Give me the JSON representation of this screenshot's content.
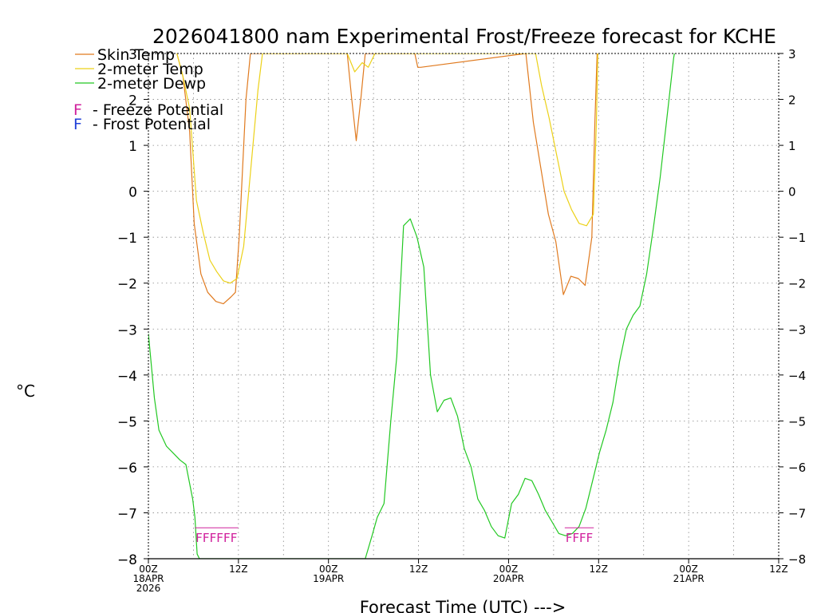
{
  "chart_data": {
    "type": "line",
    "title": "2026041800 nam Experimental Frost/Freeze forecast for KCHE",
    "xlabel": "Forecast Time (UTC) --->",
    "ylabel": "°C",
    "ylim": [
      -8,
      3
    ],
    "xlim": [
      0,
      84
    ],
    "yticks": [
      -8,
      -7,
      -6,
      -5,
      -4,
      -3,
      -2,
      -1,
      0,
      1,
      2,
      3
    ],
    "grid": true,
    "x_ticks": [
      {
        "x": 0,
        "lines": [
          "00Z",
          "18APR",
          "2026"
        ]
      },
      {
        "x": 12,
        "lines": [
          "12Z"
        ]
      },
      {
        "x": 24,
        "lines": [
          "00Z",
          "19APR"
        ]
      },
      {
        "x": 36,
        "lines": [
          "12Z"
        ]
      },
      {
        "x": 48,
        "lines": [
          "00Z",
          "20APR"
        ]
      },
      {
        "x": 60,
        "lines": [
          "12Z"
        ]
      },
      {
        "x": 72,
        "lines": [
          "00Z",
          "21APR"
        ]
      },
      {
        "x": 84,
        "lines": [
          "12Z"
        ]
      }
    ],
    "legend": {
      "placement": "top-left",
      "entries": [
        "Skin Temp",
        "2-meter Temp",
        "2-meter Dewp"
      ],
      "flag_letter": "F",
      "flag_entries": [
        "- Freeze Potential",
        "- Frost Potential"
      ]
    },
    "series": [
      {
        "name": "Skin Temp",
        "color": "#e07a1f",
        "points": [
          [
            3.8,
            3.0
          ],
          [
            4.6,
            2.5
          ],
          [
            5.5,
            1.3
          ],
          [
            6.1,
            -0.7
          ],
          [
            7.0,
            -1.8
          ],
          [
            7.9,
            -2.2
          ],
          [
            9.0,
            -2.4
          ],
          [
            10.0,
            -2.45
          ],
          [
            11.0,
            -2.3
          ],
          [
            11.6,
            -2.2
          ],
          [
            12.1,
            -1.0
          ],
          [
            13.0,
            2.0
          ],
          [
            13.6,
            3.0
          ],
          [
            26.5,
            3.0
          ],
          [
            27.1,
            2.0
          ],
          [
            27.7,
            1.1
          ],
          [
            28.3,
            2.0
          ],
          [
            28.9,
            3.0
          ],
          [
            35.5,
            3.0
          ],
          [
            35.9,
            2.7
          ],
          [
            36.3,
            2.7
          ],
          [
            50.3,
            3.0
          ],
          [
            51.3,
            1.5
          ],
          [
            52.3,
            0.5
          ],
          [
            53.3,
            -0.5
          ],
          [
            54.3,
            -1.1
          ],
          [
            55.3,
            -2.25
          ],
          [
            56.3,
            -1.85
          ],
          [
            57.3,
            -1.9
          ],
          [
            58.2,
            -2.05
          ],
          [
            59.1,
            -1.0
          ],
          [
            59.5,
            1.5
          ],
          [
            59.8,
            3.0
          ]
        ]
      },
      {
        "name": "2-meter Temp",
        "color": "#ecd118",
        "points": [
          [
            3.8,
            3.0
          ],
          [
            4.6,
            2.5
          ],
          [
            5.5,
            1.8
          ],
          [
            6.4,
            -0.2
          ],
          [
            7.3,
            -0.9
          ],
          [
            8.2,
            -1.5
          ],
          [
            9.1,
            -1.75
          ],
          [
            10.0,
            -1.95
          ],
          [
            10.9,
            -2.0
          ],
          [
            11.8,
            -1.9
          ],
          [
            12.7,
            -1.2
          ],
          [
            13.6,
            0.4
          ],
          [
            14.6,
            2.2
          ],
          [
            15.2,
            3.0
          ],
          [
            26.5,
            3.0
          ],
          [
            27.5,
            2.6
          ],
          [
            28.5,
            2.8
          ],
          [
            29.3,
            2.7
          ],
          [
            30.2,
            3.0
          ],
          [
            51.6,
            3.0
          ],
          [
            52.4,
            2.3
          ],
          [
            53.4,
            1.6
          ],
          [
            54.4,
            0.8
          ],
          [
            55.4,
            0.0
          ],
          [
            56.4,
            -0.4
          ],
          [
            57.4,
            -0.7
          ],
          [
            58.4,
            -0.75
          ],
          [
            59.3,
            -0.5
          ],
          [
            59.7,
            1.5
          ],
          [
            59.9,
            3.0
          ]
        ]
      },
      {
        "name": "2-meter Dewp",
        "color": "#22c822",
        "points": [
          [
            0,
            -3.1
          ],
          [
            0.8,
            -4.5
          ],
          [
            1.4,
            -5.2
          ],
          [
            2.4,
            -5.55
          ],
          [
            3.3,
            -5.7
          ],
          [
            4.2,
            -5.85
          ],
          [
            5.0,
            -5.95
          ],
          [
            5.9,
            -6.7
          ],
          [
            6.2,
            -7.1
          ],
          [
            6.5,
            -7.9
          ],
          [
            6.8,
            -8.0
          ],
          [
            28.9,
            -8.0
          ],
          [
            29.8,
            -7.5
          ],
          [
            30.5,
            -7.1
          ],
          [
            31.4,
            -6.8
          ],
          [
            32.3,
            -5.0
          ],
          [
            33.1,
            -3.6
          ],
          [
            34.0,
            -0.75
          ],
          [
            34.9,
            -0.6
          ],
          [
            35.8,
            -1.0
          ],
          [
            36.7,
            -1.65
          ],
          [
            37.6,
            -4.0
          ],
          [
            38.5,
            -4.8
          ],
          [
            39.4,
            -4.55
          ],
          [
            40.3,
            -4.5
          ],
          [
            41.2,
            -4.9
          ],
          [
            42.1,
            -5.6
          ],
          [
            43.0,
            -6.0
          ],
          [
            43.9,
            -6.7
          ],
          [
            44.8,
            -6.95
          ],
          [
            45.7,
            -7.3
          ],
          [
            46.6,
            -7.5
          ],
          [
            47.5,
            -7.55
          ],
          [
            48.4,
            -6.8
          ],
          [
            49.3,
            -6.6
          ],
          [
            50.2,
            -6.25
          ],
          [
            51.1,
            -6.3
          ],
          [
            52.0,
            -6.6
          ],
          [
            52.9,
            -6.95
          ],
          [
            53.8,
            -7.2
          ],
          [
            54.7,
            -7.45
          ],
          [
            55.6,
            -7.5
          ],
          [
            56.5,
            -7.45
          ],
          [
            57.4,
            -7.3
          ],
          [
            58.3,
            -6.9
          ],
          [
            59.2,
            -6.3
          ],
          [
            60.1,
            -5.7
          ],
          [
            61.0,
            -5.2
          ],
          [
            61.9,
            -4.6
          ],
          [
            62.8,
            -3.7
          ],
          [
            63.7,
            -3.0
          ],
          [
            64.6,
            -2.7
          ],
          [
            65.5,
            -2.5
          ],
          [
            66.4,
            -1.8
          ],
          [
            67.3,
            -0.8
          ],
          [
            68.2,
            0.3
          ],
          [
            69.1,
            1.6
          ],
          [
            70.0,
            2.9
          ],
          [
            70.1,
            3.0
          ]
        ]
      }
    ],
    "flag_runs": [
      {
        "type": "Freeze Potential",
        "value": -7.5,
        "x": [
          6.4,
          7.3,
          8.2,
          9.1,
          10.0,
          11.0
        ],
        "label": "FFFFFF"
      },
      {
        "type": "Freeze Potential",
        "value": -7.5,
        "x": [
          55.7,
          56.6,
          57.5,
          58.4
        ],
        "label": "FFFF"
      }
    ]
  },
  "colors": {
    "freeze": "#d0209c",
    "frost": "#2040d8",
    "grid": "#888888",
    "axis": "#000000"
  }
}
